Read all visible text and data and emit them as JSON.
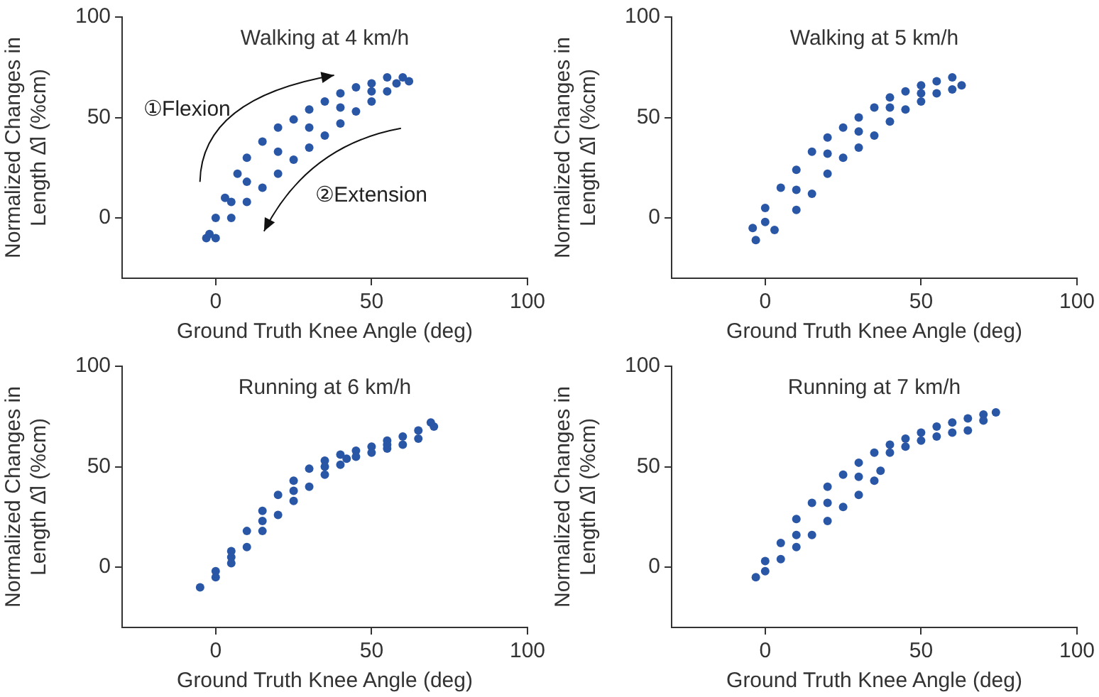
{
  "chart_data": [
    {
      "type": "scatter",
      "title": "Walking at 4 km/h",
      "xlabel": "Ground Truth Knee Angle (deg)",
      "ylabel": "Normalized Changes in Length Δ̂l (%cm)",
      "xlim": [
        -30,
        100
      ],
      "ylim": [
        -30,
        100
      ],
      "xticks": [
        0,
        50,
        100
      ],
      "yticks": [
        0,
        50,
        100
      ],
      "marker": "circle",
      "annotations": [
        "①Flexion",
        "②Extension"
      ],
      "series": [
        {
          "color": "#2a56a6",
          "x": [
            -3,
            -2,
            0,
            3,
            7,
            10,
            15,
            20,
            25,
            30,
            35,
            40,
            45,
            50,
            55,
            60,
            0,
            5,
            10,
            15,
            20,
            25,
            30,
            35,
            40,
            45,
            50,
            55,
            62,
            5,
            10,
            20,
            30,
            40,
            50,
            58
          ],
          "values": [
            -10,
            -8,
            0,
            10,
            22,
            30,
            38,
            45,
            49,
            54,
            58,
            62,
            65,
            67,
            70,
            70,
            -10,
            0,
            8,
            15,
            22,
            29,
            35,
            41,
            47,
            53,
            58,
            63,
            68,
            8,
            18,
            33,
            45,
            55,
            63,
            67
          ]
        }
      ]
    },
    {
      "type": "scatter",
      "title": "Walking at 5 km/h",
      "xlabel": "Ground Truth Knee Angle (deg)",
      "ylabel": "Normalized Changes in Length Δ̂l (%cm)",
      "xlim": [
        -30,
        100
      ],
      "ylim": [
        -30,
        100
      ],
      "xticks": [
        0,
        50,
        100
      ],
      "yticks": [
        0,
        50,
        100
      ],
      "marker": "circle",
      "series": [
        {
          "color": "#2a56a6",
          "x": [
            -4,
            0,
            5,
            10,
            15,
            20,
            25,
            30,
            35,
            40,
            45,
            50,
            55,
            60,
            -3,
            3,
            10,
            15,
            20,
            25,
            30,
            35,
            40,
            45,
            50,
            55,
            60,
            63,
            0,
            10,
            20,
            30,
            40,
            50
          ],
          "values": [
            -5,
            5,
            15,
            24,
            33,
            40,
            45,
            50,
            55,
            60,
            63,
            66,
            68,
            70,
            -11,
            -6,
            4,
            12,
            22,
            30,
            35,
            41,
            48,
            54,
            58,
            62,
            64,
            66,
            -2,
            14,
            32,
            43,
            55,
            62
          ]
        }
      ]
    },
    {
      "type": "scatter",
      "title": "Running at 6 km/h",
      "xlabel": "Ground Truth Knee Angle (deg)",
      "ylabel": "Normalized Changes in Length Δ̂l (%cm)",
      "xlim": [
        -30,
        100
      ],
      "ylim": [
        -30,
        100
      ],
      "xticks": [
        0,
        50,
        100
      ],
      "yticks": [
        0,
        50,
        100
      ],
      "marker": "circle",
      "series": [
        {
          "color": "#2a56a6",
          "x": [
            -5,
            0,
            5,
            10,
            15,
            20,
            25,
            30,
            35,
            40,
            45,
            50,
            55,
            60,
            65,
            69,
            0,
            5,
            10,
            15,
            20,
            25,
            30,
            35,
            40,
            45,
            50,
            55,
            60,
            65,
            70,
            5,
            15,
            25,
            35,
            42,
            55
          ],
          "values": [
            -10,
            -2,
            8,
            18,
            28,
            36,
            43,
            49,
            53,
            56,
            58,
            60,
            63,
            65,
            68,
            72,
            -5,
            2,
            10,
            18,
            26,
            33,
            40,
            46,
            51,
            55,
            57,
            59,
            61,
            64,
            70,
            5,
            23,
            38,
            50,
            54,
            61
          ]
        }
      ]
    },
    {
      "type": "scatter",
      "title": "Running at 7 km/h",
      "xlabel": "Ground Truth Knee Angle (deg)",
      "ylabel": "Normalized Changes in Length Δ̂l (%cm)",
      "xlim": [
        -30,
        100
      ],
      "ylim": [
        -30,
        100
      ],
      "xticks": [
        0,
        50,
        100
      ],
      "yticks": [
        0,
        50,
        100
      ],
      "marker": "circle",
      "series": [
        {
          "color": "#2a56a6",
          "x": [
            -3,
            0,
            5,
            10,
            15,
            20,
            25,
            30,
            35,
            40,
            45,
            50,
            55,
            60,
            65,
            70,
            74,
            0,
            5,
            10,
            15,
            20,
            25,
            30,
            35,
            37,
            40,
            45,
            50,
            55,
            60,
            65,
            70,
            10,
            20,
            30
          ],
          "values": [
            -5,
            3,
            12,
            24,
            32,
            40,
            46,
            52,
            57,
            61,
            64,
            67,
            70,
            72,
            74,
            76,
            77,
            -2,
            4,
            10,
            16,
            23,
            30,
            36,
            43,
            48,
            57,
            60,
            63,
            65,
            67,
            68,
            73,
            16,
            32,
            45
          ]
        }
      ]
    }
  ]
}
